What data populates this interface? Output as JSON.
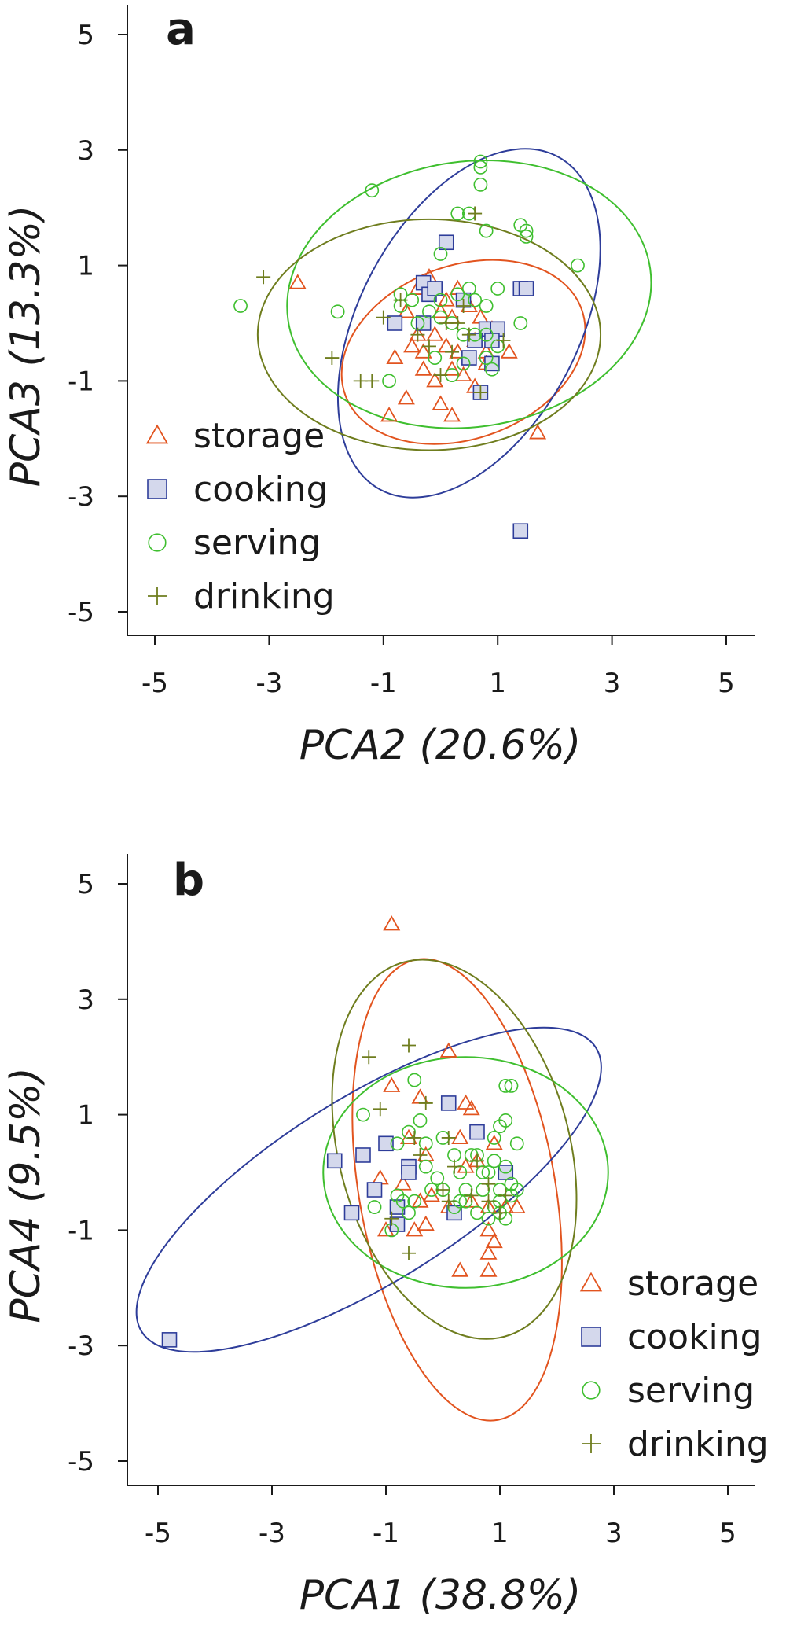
{
  "colors": {
    "storage": "#e2541f",
    "cooking": "#2e3d9a",
    "serving": "#3fbf2f",
    "drinking": "#6f7d1e",
    "cooking_fill": "#d4d8ec",
    "axis": "#1a1a1a"
  },
  "chart_data": [
    {
      "type": "scatter",
      "panel_label": "a",
      "xlabel": "PCA2 (20.6%)",
      "ylabel": "PCA3 (13.3%)",
      "xlim": [
        -5.5,
        5.5
      ],
      "ylim": [
        -5.4,
        5.6
      ],
      "xticks": [
        -5,
        -3,
        -1,
        1,
        3,
        5
      ],
      "yticks": [
        -5,
        -3,
        -1,
        1,
        3,
        5
      ],
      "legend_position": "bottom-left",
      "series": [
        {
          "name": "storage",
          "marker": "triangle",
          "points": [
            [
              -2.5,
              0.7
            ],
            [
              -0.2,
              0.8
            ],
            [
              -0.4,
              0.6
            ],
            [
              0.1,
              0.4
            ],
            [
              -0.6,
              0.2
            ],
            [
              0.2,
              0.1
            ],
            [
              0.5,
              0.3
            ],
            [
              0.7,
              0.1
            ],
            [
              -0.8,
              -0.6
            ],
            [
              -0.5,
              -0.4
            ],
            [
              -0.3,
              -0.5
            ],
            [
              -0.1,
              -0.2
            ],
            [
              0.1,
              -0.4
            ],
            [
              0.3,
              -0.5
            ],
            [
              0.6,
              -0.3
            ],
            [
              0.8,
              -0.5
            ],
            [
              -0.3,
              -0.8
            ],
            [
              -0.1,
              -1.0
            ],
            [
              0.2,
              -0.8
            ],
            [
              0.4,
              -0.9
            ],
            [
              0.6,
              -1.1
            ],
            [
              0.8,
              -0.7
            ],
            [
              -0.6,
              -1.3
            ],
            [
              -0.9,
              -1.6
            ],
            [
              0.0,
              -1.4
            ],
            [
              0.2,
              -1.6
            ],
            [
              1.2,
              -0.5
            ],
            [
              0.3,
              0.6
            ],
            [
              -0.4,
              -0.2
            ],
            [
              1.7,
              -1.9
            ],
            [
              0.9,
              -0.1
            ],
            [
              0.0,
              0.2
            ]
          ]
        },
        {
          "name": "cooking",
          "marker": "square",
          "points": [
            [
              0.1,
              1.4
            ],
            [
              -0.3,
              0.7
            ],
            [
              -0.2,
              0.5
            ],
            [
              -0.1,
              0.6
            ],
            [
              0.4,
              0.4
            ],
            [
              -0.8,
              0.0
            ],
            [
              -0.3,
              0.0
            ],
            [
              0.8,
              -0.1
            ],
            [
              1.0,
              -0.1
            ],
            [
              0.9,
              -0.3
            ],
            [
              0.6,
              -0.3
            ],
            [
              0.5,
              -0.6
            ],
            [
              0.9,
              -0.7
            ],
            [
              0.7,
              -1.2
            ],
            [
              1.4,
              0.6
            ],
            [
              1.5,
              0.6
            ],
            [
              1.4,
              -3.6
            ]
          ]
        },
        {
          "name": "serving",
          "marker": "circle",
          "points": [
            [
              -3.5,
              0.3
            ],
            [
              -1.2,
              2.3
            ],
            [
              -0.9,
              -1.0
            ],
            [
              -1.8,
              0.2
            ],
            [
              -0.5,
              0.4
            ],
            [
              -0.7,
              0.5
            ],
            [
              -0.7,
              0.3
            ],
            [
              -0.2,
              0.2
            ],
            [
              -0.4,
              0.0
            ],
            [
              0.0,
              0.1
            ],
            [
              0.2,
              0.0
            ],
            [
              0.3,
              0.5
            ],
            [
              0.5,
              0.6
            ],
            [
              0.6,
              0.4
            ],
            [
              0.8,
              0.3
            ],
            [
              1.0,
              0.6
            ],
            [
              1.4,
              0.0
            ],
            [
              0.4,
              -0.2
            ],
            [
              0.6,
              -0.2
            ],
            [
              0.8,
              -0.2
            ],
            [
              1.0,
              -0.4
            ],
            [
              -0.1,
              -0.6
            ],
            [
              0.2,
              -0.9
            ],
            [
              0.4,
              -0.7
            ],
            [
              0.8,
              -0.6
            ],
            [
              0.9,
              -0.8
            ],
            [
              0.0,
              1.2
            ],
            [
              0.3,
              1.9
            ],
            [
              0.5,
              1.9
            ],
            [
              0.8,
              1.6
            ],
            [
              0.7,
              2.4
            ],
            [
              0.7,
              2.8
            ],
            [
              0.7,
              2.7
            ],
            [
              1.4,
              1.7
            ],
            [
              1.5,
              1.5
            ],
            [
              1.5,
              1.6
            ],
            [
              2.4,
              1.0
            ],
            [
              0.0,
              0.4
            ]
          ]
        },
        {
          "name": "drinking",
          "marker": "plus",
          "points": [
            [
              -3.1,
              0.8
            ],
            [
              -1.9,
              -0.6
            ],
            [
              -1.4,
              -1.0
            ],
            [
              -1.2,
              -1.0
            ],
            [
              -1.0,
              0.1
            ],
            [
              -0.7,
              0.4
            ],
            [
              -0.4,
              -0.2
            ],
            [
              -0.2,
              -0.4
            ],
            [
              0.0,
              -0.9
            ],
            [
              0.1,
              0.0
            ],
            [
              0.3,
              0.0
            ],
            [
              0.4,
              0.3
            ],
            [
              0.5,
              -0.2
            ],
            [
              0.6,
              1.9
            ],
            [
              0.7,
              -1.2
            ],
            [
              1.1,
              -0.3
            ],
            [
              0.2,
              -0.5
            ]
          ]
        }
      ],
      "ellipses": [
        {
          "series": "storage",
          "cx": 0.4,
          "cy": -0.5,
          "rx": 2.2,
          "ry": 1.5,
          "angle_deg": -20
        },
        {
          "series": "cooking",
          "cx": 0.5,
          "cy": 0.0,
          "rx": 3.3,
          "ry": 1.9,
          "angle_deg": -62
        },
        {
          "series": "serving",
          "cx": 0.5,
          "cy": 0.5,
          "rx": 3.2,
          "ry": 2.3,
          "angle_deg": -8
        },
        {
          "series": "drinking",
          "cx": -0.2,
          "cy": -0.2,
          "rx": 3.0,
          "ry": 2.0,
          "angle_deg": 0
        }
      ]
    },
    {
      "type": "scatter",
      "panel_label": "b",
      "xlabel": "PCA1 (38.8%)",
      "ylabel": "PCA4 (9.5%)",
      "xlim": [
        -5.5,
        5.5
      ],
      "ylim": [
        -5.4,
        5.6
      ],
      "xticks": [
        -5,
        -3,
        -1,
        1,
        3,
        5
      ],
      "yticks": [
        -5,
        -3,
        -1,
        1,
        3,
        5
      ],
      "legend_position": "bottom-right",
      "series": [
        {
          "name": "storage",
          "marker": "triangle",
          "points": [
            [
              -0.9,
              4.3
            ],
            [
              0.1,
              2.1
            ],
            [
              -0.9,
              1.5
            ],
            [
              -0.4,
              1.3
            ],
            [
              0.4,
              1.2
            ],
            [
              0.5,
              1.1
            ],
            [
              -0.6,
              0.6
            ],
            [
              0.3,
              0.6
            ],
            [
              0.9,
              0.5
            ],
            [
              -0.3,
              0.3
            ],
            [
              0.4,
              0.1
            ],
            [
              0.6,
              0.2
            ],
            [
              -1.1,
              -0.1
            ],
            [
              -0.7,
              -0.2
            ],
            [
              -0.4,
              -0.5
            ],
            [
              0.1,
              -0.6
            ],
            [
              0.5,
              -0.5
            ],
            [
              0.8,
              -0.6
            ],
            [
              1.1,
              -0.6
            ],
            [
              1.3,
              -0.6
            ],
            [
              -1.0,
              -1.0
            ],
            [
              -0.5,
              -1.0
            ],
            [
              -0.3,
              -0.9
            ],
            [
              0.8,
              -1.0
            ],
            [
              0.9,
              -1.2
            ],
            [
              0.8,
              -1.4
            ],
            [
              0.3,
              -1.7
            ],
            [
              0.8,
              -1.7
            ],
            [
              -0.2,
              -0.4
            ]
          ]
        },
        {
          "name": "cooking",
          "marker": "square",
          "points": [
            [
              -4.8,
              -2.9
            ],
            [
              -1.9,
              0.2
            ],
            [
              -1.6,
              -0.7
            ],
            [
              -1.4,
              0.3
            ],
            [
              -1.2,
              -0.3
            ],
            [
              -1.0,
              0.5
            ],
            [
              -0.8,
              -0.6
            ],
            [
              -0.8,
              -0.9
            ],
            [
              -0.6,
              0.1
            ],
            [
              -0.6,
              0.0
            ],
            [
              0.1,
              1.2
            ],
            [
              0.6,
              0.7
            ],
            [
              1.1,
              0.0
            ],
            [
              0.2,
              -0.7
            ]
          ]
        },
        {
          "name": "serving",
          "marker": "circle",
          "points": [
            [
              -1.4,
              1.0
            ],
            [
              -0.5,
              1.6
            ],
            [
              -0.4,
              0.9
            ],
            [
              -0.6,
              0.7
            ],
            [
              -0.8,
              0.5
            ],
            [
              -0.3,
              0.5
            ],
            [
              0.0,
              0.6
            ],
            [
              0.2,
              0.3
            ],
            [
              0.6,
              0.3
            ],
            [
              0.9,
              0.6
            ],
            [
              1.0,
              0.8
            ],
            [
              1.2,
              1.5
            ],
            [
              1.1,
              1.5
            ],
            [
              1.3,
              0.5
            ],
            [
              -0.8,
              -0.4
            ],
            [
              -0.5,
              -0.5
            ],
            [
              -0.2,
              -0.3
            ],
            [
              0.4,
              -0.5
            ],
            [
              0.7,
              -0.3
            ],
            [
              1.0,
              -0.5
            ],
            [
              1.1,
              -0.8
            ],
            [
              1.0,
              -0.7
            ],
            [
              1.2,
              -0.4
            ],
            [
              1.2,
              -0.2
            ],
            [
              -0.9,
              -1.0
            ],
            [
              -0.6,
              -0.7
            ],
            [
              0.2,
              -0.6
            ],
            [
              0.3,
              -0.5
            ],
            [
              0.0,
              -0.3
            ],
            [
              0.7,
              0.0
            ],
            [
              1.1,
              0.9
            ],
            [
              1.0,
              -0.3
            ],
            [
              0.6,
              -0.7
            ],
            [
              1.3,
              -0.3
            ],
            [
              0.8,
              -0.8
            ],
            [
              -0.3,
              0.1
            ],
            [
              0.3,
              0.0
            ],
            [
              0.5,
              0.3
            ],
            [
              0.9,
              0.2
            ],
            [
              0.8,
              0.0
            ],
            [
              -0.7,
              -0.5
            ],
            [
              -1.2,
              -0.6
            ],
            [
              0.9,
              -0.6
            ],
            [
              1.1,
              0.1
            ],
            [
              -0.1,
              -0.1
            ],
            [
              0.4,
              -0.3
            ]
          ]
        },
        {
          "name": "drinking",
          "marker": "plus",
          "points": [
            [
              -1.3,
              2.0
            ],
            [
              -0.6,
              2.2
            ],
            [
              -1.1,
              1.1
            ],
            [
              -0.3,
              1.2
            ],
            [
              -0.5,
              0.6
            ],
            [
              -0.4,
              0.3
            ],
            [
              0.1,
              0.6
            ],
            [
              0.2,
              0.1
            ],
            [
              0.6,
              0.2
            ],
            [
              0.8,
              -0.2
            ],
            [
              -0.9,
              -0.8
            ],
            [
              -0.6,
              -1.4
            ],
            [
              0.1,
              -0.5
            ],
            [
              0.8,
              -0.5
            ],
            [
              1.0,
              -0.7
            ],
            [
              1.1,
              -0.4
            ],
            [
              0.0,
              -0.3
            ],
            [
              0.5,
              -0.4
            ]
          ]
        }
      ],
      "ellipses": [
        {
          "series": "storage",
          "cx": 0.25,
          "cy": -0.3,
          "rx": 4.1,
          "ry": 1.7,
          "angle_deg": 80
        },
        {
          "series": "cooking",
          "cx": -1.3,
          "cy": -0.3,
          "rx": 4.7,
          "ry": 1.6,
          "angle_deg": -32
        },
        {
          "series": "serving",
          "cx": 0.4,
          "cy": 0.0,
          "rx": 2.5,
          "ry": 2.0,
          "angle_deg": 0
        },
        {
          "series": "drinking",
          "cx": 0.2,
          "cy": 0.4,
          "rx": 3.4,
          "ry": 2.0,
          "angle_deg": 75
        }
      ]
    }
  ]
}
